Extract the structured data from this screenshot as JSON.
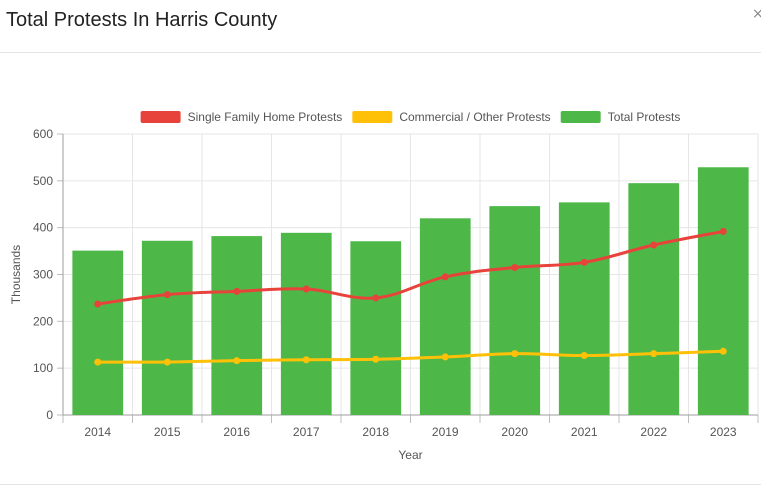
{
  "header": {
    "title": "Total Protests In Harris County",
    "close_glyph": "×"
  },
  "chart_data": {
    "type": "bar",
    "title": "",
    "xlabel": "Year",
    "ylabel": "Thousands",
    "ylim": [
      0,
      600
    ],
    "yticks": [
      0,
      100,
      200,
      300,
      400,
      500,
      600
    ],
    "grid": true,
    "legend_position": "top",
    "categories": [
      "2014",
      "2015",
      "2016",
      "2017",
      "2018",
      "2019",
      "2020",
      "2021",
      "2022",
      "2023"
    ],
    "series": [
      {
        "name": "Single Family Home Protests",
        "type": "line",
        "color": "#e8433a",
        "values": [
          237,
          257,
          264,
          269,
          250,
          295,
          315,
          326,
          363,
          392
        ]
      },
      {
        "name": "Commercial / Other Protests",
        "type": "line",
        "color": "#ffc107",
        "values": [
          113,
          113,
          116,
          118,
          119,
          124,
          131,
          127,
          131,
          136
        ]
      },
      {
        "name": "Total Protests",
        "type": "bar",
        "color": "#4db848",
        "values": [
          351,
          372,
          382,
          389,
          371,
          420,
          446,
          454,
          495,
          529
        ]
      }
    ]
  }
}
